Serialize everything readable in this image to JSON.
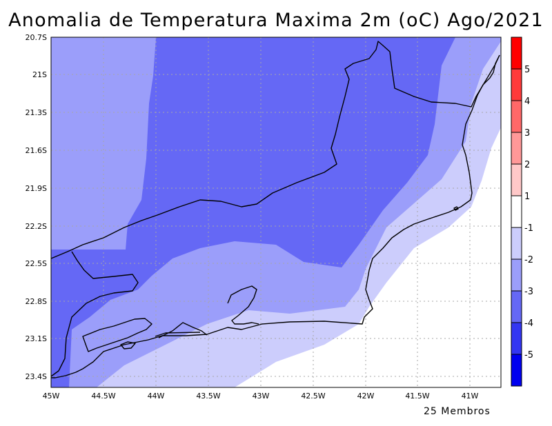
{
  "title": "Anomalia de Temperatura Maxima 2m (oC) Ago/2021",
  "x_ticks": [
    "45W",
    "44.5W",
    "44W",
    "43.5W",
    "43W",
    "42.5W",
    "42W",
    "41.5W",
    "41W"
  ],
  "y_ticks": [
    "20.7S",
    "21S",
    "21.3S",
    "21.6S",
    "21.9S",
    "22.2S",
    "22.5S",
    "22.8S",
    "23.1S",
    "23.4S"
  ],
  "map_extent": {
    "lon_west": -45.0,
    "lon_east": -40.7,
    "lat_north": -20.7,
    "lat_south": -23.5
  },
  "colorbar": {
    "labels": [
      "5",
      "4",
      "3",
      "2",
      "1",
      "-1",
      "-2",
      "-3",
      "-4",
      "-5"
    ],
    "colors": [
      "#ff0000",
      "#ff3a3a",
      "#ff6868",
      "#ff9898",
      "#ffc8c8",
      "#ffffff",
      "#cccdfc",
      "#9b9efa",
      "#6568f5",
      "#3336f2",
      "#0000f0"
    ]
  },
  "anomaly_colors": {
    "lt_-4": "#3336f2",
    "-4_to_-3": "#6568f5",
    "-3_to_-2": "#9b9efa",
    "-2_to_-1": "#cccdfc",
    "-1_to_1": "#ffffff"
  },
  "footer": "25 Membros"
}
